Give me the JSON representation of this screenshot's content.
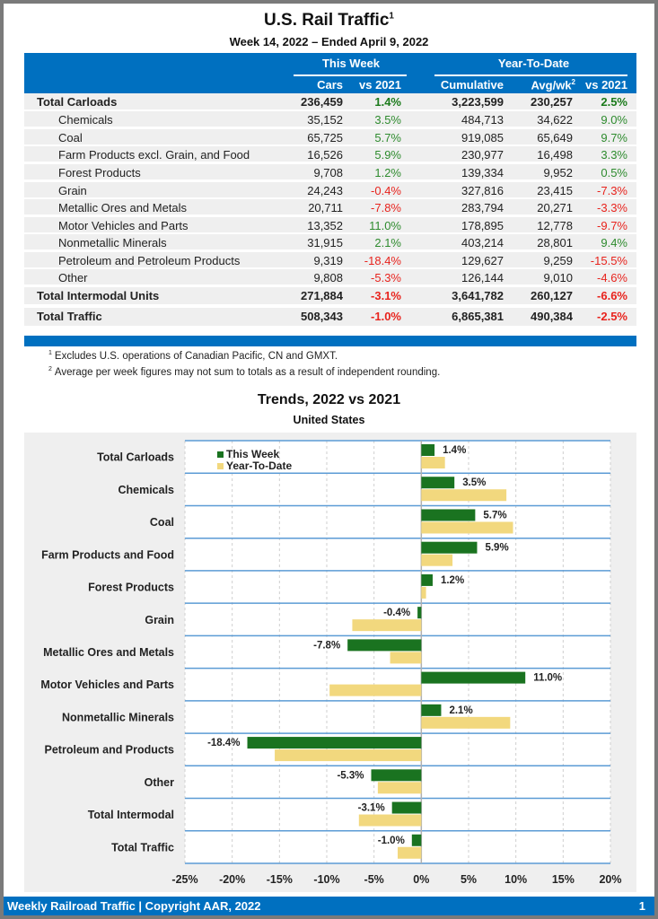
{
  "header": {
    "title": "U.S. Rail Traffic",
    "title_footnote": "1",
    "subtitle": "Week 14, 2022 – Ended April 9, 2022"
  },
  "table": {
    "group_headers": [
      "This Week",
      "Year-To-Date"
    ],
    "columns": [
      "Cars",
      "vs 2021",
      "Cumulative",
      "Avg/wk",
      "vs 2021"
    ],
    "avg_footnote": "2",
    "rows": [
      {
        "label": "Total Carloads",
        "type": "total",
        "cars": "236,459",
        "vs_week": "1.4%",
        "cumulative": "3,223,599",
        "avg_wk": "230,257",
        "vs_ytd": "2.5%"
      },
      {
        "label": "Chemicals",
        "type": "sub",
        "cars": "35,152",
        "vs_week": "3.5%",
        "cumulative": "484,713",
        "avg_wk": "34,622",
        "vs_ytd": "9.0%"
      },
      {
        "label": "Coal",
        "type": "sub",
        "cars": "65,725",
        "vs_week": "5.7%",
        "cumulative": "919,085",
        "avg_wk": "65,649",
        "vs_ytd": "9.7%"
      },
      {
        "label": "Farm Products excl. Grain, and Food",
        "type": "sub",
        "cars": "16,526",
        "vs_week": "5.9%",
        "cumulative": "230,977",
        "avg_wk": "16,498",
        "vs_ytd": "3.3%"
      },
      {
        "label": "Forest Products",
        "type": "sub",
        "cars": "9,708",
        "vs_week": "1.2%",
        "cumulative": "139,334",
        "avg_wk": "9,952",
        "vs_ytd": "0.5%"
      },
      {
        "label": "Grain",
        "type": "sub",
        "cars": "24,243",
        "vs_week": "-0.4%",
        "cumulative": "327,816",
        "avg_wk": "23,415",
        "vs_ytd": "-7.3%"
      },
      {
        "label": "Metallic Ores and Metals",
        "type": "sub",
        "cars": "20,711",
        "vs_week": "-7.8%",
        "cumulative": "283,794",
        "avg_wk": "20,271",
        "vs_ytd": "-3.3%"
      },
      {
        "label": "Motor Vehicles and Parts",
        "type": "sub",
        "cars": "13,352",
        "vs_week": "11.0%",
        "cumulative": "178,895",
        "avg_wk": "12,778",
        "vs_ytd": "-9.7%"
      },
      {
        "label": "Nonmetallic Minerals",
        "type": "sub",
        "cars": "31,915",
        "vs_week": "2.1%",
        "cumulative": "403,214",
        "avg_wk": "28,801",
        "vs_ytd": "9.4%"
      },
      {
        "label": "Petroleum and Petroleum Products",
        "type": "sub",
        "cars": "9,319",
        "vs_week": "-18.4%",
        "cumulative": "129,627",
        "avg_wk": "9,259",
        "vs_ytd": "-15.5%"
      },
      {
        "label": "Other",
        "type": "sub",
        "cars": "9,808",
        "vs_week": "-5.3%",
        "cumulative": "126,144",
        "avg_wk": "9,010",
        "vs_ytd": "-4.6%"
      },
      {
        "label": "Total Intermodal Units",
        "type": "total",
        "cars": "271,884",
        "vs_week": "-3.1%",
        "cumulative": "3,641,782",
        "avg_wk": "260,127",
        "vs_ytd": "-6.6%"
      },
      {
        "label": "Total Traffic",
        "type": "total",
        "cars": "508,343",
        "vs_week": "-1.0%",
        "cumulative": "6,865,381",
        "avg_wk": "490,384",
        "vs_ytd": "-2.5%"
      }
    ]
  },
  "footnotes": [
    {
      "mark": "1",
      "text": "Excludes U.S. operations of Canadian Pacific, CN and GMXT."
    },
    {
      "mark": "2",
      "text": "Average per week figures may not sum to totals as a result of independent rounding."
    }
  ],
  "colors": {
    "brand_blue": "#0070c0",
    "positive": "#2e8b2e",
    "negative": "#e8231d",
    "this_week_bar": "#1a7320",
    "ytd_bar": "#f2d87e"
  },
  "chart_data": {
    "type": "bar",
    "orientation": "horizontal",
    "title": "Trends, 2022 vs 2021",
    "subtitle": "United States",
    "categories": [
      "Total Carloads",
      "Chemicals",
      "Coal",
      "Farm Products and Food",
      "Forest Products",
      "Grain",
      "Metallic Ores and Metals",
      "Motor Vehicles and Parts",
      "Nonmetallic Minerals",
      "Petroleum and Products",
      "Other",
      "Total Intermodal",
      "Total Traffic"
    ],
    "series": [
      {
        "name": "This Week",
        "values": [
          1.4,
          3.5,
          5.7,
          5.9,
          1.2,
          -0.4,
          -7.8,
          11.0,
          2.1,
          -18.4,
          -5.3,
          -3.1,
          -1.0
        ],
        "labeled": true
      },
      {
        "name": "Year-To-Date",
        "values": [
          2.5,
          9.0,
          9.7,
          3.3,
          0.5,
          -7.3,
          -3.3,
          -9.7,
          9.4,
          -15.5,
          -4.6,
          -6.6,
          -2.5
        ],
        "labeled": false
      }
    ],
    "xlim": [
      -25,
      20
    ],
    "x_ticks": [
      "-25%",
      "-20%",
      "-15%",
      "-10%",
      "-5%",
      "0%",
      "5%",
      "10%",
      "15%",
      "20%"
    ],
    "x_tick_values": [
      -25,
      -20,
      -15,
      -10,
      -5,
      0,
      5,
      10,
      15,
      20
    ],
    "value_format": "percent_1dp",
    "grid": true,
    "legend": "top-left"
  },
  "footer": {
    "left": "Weekly Railroad Traffic | Copyright AAR, 2022",
    "page": "1"
  }
}
